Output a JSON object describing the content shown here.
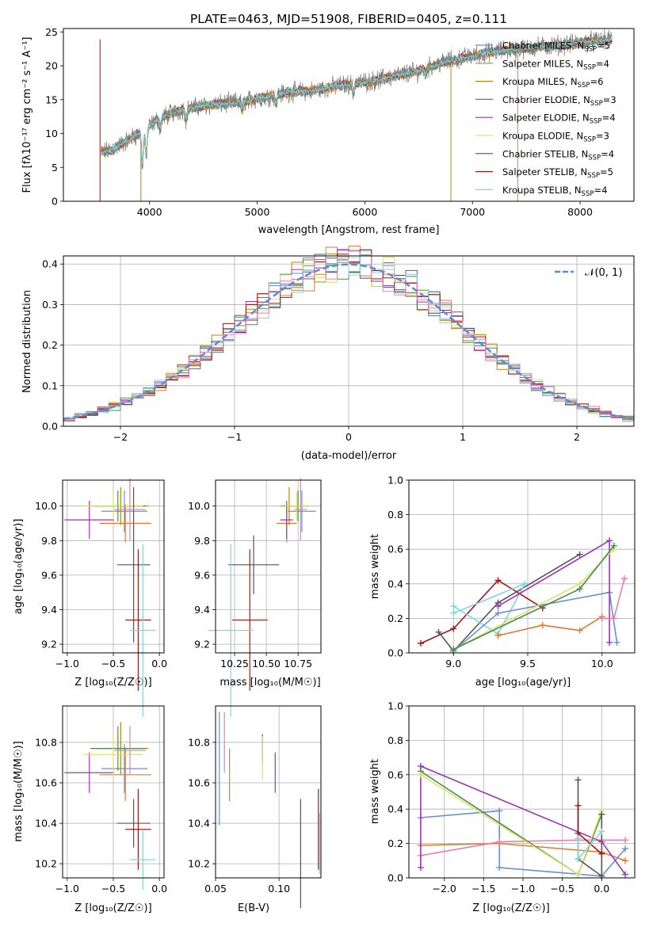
{
  "colors": {
    "Chabrier MILES": "#6a8fd8",
    "Salpeter MILES": "#e07a2e",
    "Kroupa MILES": "#b8860b",
    "Chabrier ELODIE": "#4d8a4d",
    "Salpeter ELODIE": "#9d35b5",
    "Kroupa ELODIE": "#d9e36a",
    "Chabrier STELIB": "#555555",
    "Salpeter STELIB": "#a01818",
    "Kroupa STELIB": "#7fd6dc",
    "Pink": "#e87fb0",
    "Gauss": "#5b8ad6"
  },
  "chart_data": [
    {
      "type": "line",
      "title": "PLATE=0463, MJD=51908, FIBERID=0405, z=0.111",
      "xlabel": "wavelength [Angstrom, rest frame]",
      "ylabel": "Flux [fλ10⁻¹⁷ erg cm⁻² s⁻¹ A⁻¹]",
      "xlim": [
        3200,
        8500
      ],
      "ylim": [
        0,
        25.5
      ],
      "xticks": [
        4000,
        5000,
        6000,
        7000,
        8000
      ],
      "yticks": [
        0,
        5,
        10,
        15,
        20,
        25
      ],
      "legend_position": "right",
      "legend": [
        {
          "label": "Chabrier MILES, N_SSP=5",
          "main": "Chabrier MILES, N",
          "sub": "SSP",
          "tail": "=5",
          "color": "Chabrier MILES"
        },
        {
          "label": "Salpeter MILES, N_SSP=4",
          "main": "Salpeter MILES, N",
          "sub": "SSP",
          "tail": "=4",
          "color": "Salpeter MILES"
        },
        {
          "label": "Kroupa MILES, N_SSP=6",
          "main": "Kroupa MILES, N",
          "sub": "SSP",
          "tail": "=6",
          "color": "Kroupa MILES"
        },
        {
          "label": "Chabrier ELODIE, N_SSP=3",
          "main": "Chabrier ELODIE, N",
          "sub": "SSP",
          "tail": "=3",
          "color": "Chabrier ELODIE"
        },
        {
          "label": "Salpeter ELODIE, N_SSP=4",
          "main": "Salpeter ELODIE, N",
          "sub": "SSP",
          "tail": "=4",
          "color": "Salpeter ELODIE"
        },
        {
          "label": "Kroupa ELODIE, N_SSP=3",
          "main": "Kroupa ELODIE, N",
          "sub": "SSP",
          "tail": "=3",
          "color": "Kroupa ELODIE"
        },
        {
          "label": "Chabrier STELIB, N_SSP=4",
          "main": "Chabrier STELIB, N",
          "sub": "SSP",
          "tail": "=4",
          "color": "Chabrier STELIB"
        },
        {
          "label": "Salpeter STELIB, N_SSP=5",
          "main": "Salpeter STELIB, N",
          "sub": "SSP",
          "tail": "=5",
          "color": "Salpeter STELIB"
        },
        {
          "label": "Kroupa STELIB, N_SSP=4",
          "main": "Kroupa STELIB, N",
          "sub": "SSP",
          "tail": "=4",
          "color": "Kroupa STELIB"
        }
      ],
      "continuum_knots": [
        [
          3550,
          7.2
        ],
        [
          3650,
          7.6
        ],
        [
          3800,
          9.0
        ],
        [
          3950,
          10.5
        ],
        [
          4100,
          12.3
        ],
        [
          4300,
          13.5
        ],
        [
          4500,
          14.1
        ],
        [
          4700,
          14.4
        ],
        [
          4900,
          14.8
        ],
        [
          5100,
          15.5
        ],
        [
          5300,
          16.1
        ],
        [
          5500,
          16.3
        ],
        [
          5700,
          16.9
        ],
        [
          5900,
          17.4
        ],
        [
          6100,
          17.8
        ],
        [
          6300,
          18.6
        ],
        [
          6500,
          19.2
        ],
        [
          6700,
          20.4
        ],
        [
          6900,
          21.1
        ],
        [
          7100,
          21.8
        ],
        [
          7300,
          22.3
        ],
        [
          7500,
          22.6
        ],
        [
          7700,
          22.9
        ],
        [
          7900,
          23.2
        ],
        [
          8100,
          23.6
        ],
        [
          8300,
          23.9
        ]
      ],
      "absorption_dips": [
        [
          3934,
          5.0
        ],
        [
          3969,
          4.0
        ],
        [
          4101,
          1.6
        ],
        [
          4340,
          1.5
        ],
        [
          4861,
          1.2
        ],
        [
          5175,
          1.4
        ],
        [
          5893,
          1.5
        ],
        [
          6563,
          0.8
        ]
      ],
      "data_range": [
        3550,
        8300
      ],
      "spikes_to_zero": [
        [
          3540,
          "Salpeter STELIB"
        ],
        [
          3920,
          "Kroupa MILES"
        ],
        [
          6800,
          "Kroupa MILES"
        ],
        [
          7420,
          "Salpeter MILES"
        ]
      ]
    },
    {
      "type": "bar",
      "xlabel": "(data-model)/error",
      "ylabel": "Normed distribution",
      "xlim": [
        -2.5,
        2.5
      ],
      "ylim": [
        0,
        0.42
      ],
      "xticks": [
        -2,
        -1,
        0,
        1,
        2
      ],
      "yticks": [
        0.0,
        0.1,
        0.2,
        0.3,
        0.4
      ],
      "bins": [
        -2.5,
        2.5,
        50
      ],
      "legend_label": "𝒩(0, 1)",
      "series_colors": [
        "Chabrier MILES",
        "Salpeter MILES",
        "Kroupa MILES",
        "Chabrier ELODIE",
        "Salpeter ELODIE",
        "Kroupa ELODIE",
        "Chabrier STELIB",
        "Salpeter STELIB",
        "Kroupa STELIB",
        "Pink"
      ]
    },
    {
      "type": "scatter",
      "xlabel": "Z [log₁₀(Z/Z☉)]",
      "ylabel": "age  [log₁₀(age/yr)]",
      "xlim": [
        -1.05,
        0.05
      ],
      "ylim": [
        9.15,
        10.15
      ],
      "xticks": [
        -1.0,
        -0.5,
        0.0
      ],
      "yticks": [
        9.2,
        9.4,
        9.6,
        9.8,
        10.0
      ],
      "points": [
        {
          "color": "Chabrier MILES",
          "x": -0.38,
          "xerr": 0.25,
          "y": 9.97,
          "yerr": 0.12
        },
        {
          "color": "Salpeter MILES",
          "x": -0.37,
          "xerr": 0.28,
          "y": 9.9,
          "yerr": 0.11
        },
        {
          "color": "Kroupa MILES",
          "x": -0.42,
          "xerr": 0.3,
          "y": 10.0,
          "yerr": 0.11
        },
        {
          "color": "Chabrier ELODIE",
          "x": -0.45,
          "xerr": 0.3,
          "y": 10.0,
          "yerr": 0.09
        },
        {
          "color": "Salpeter ELODIE",
          "x": -0.76,
          "xerr": 0.27,
          "y": 9.92,
          "yerr": 0.11
        },
        {
          "color": "Kroupa ELODIE",
          "x": -0.5,
          "xerr": 0.32,
          "y": 10.0,
          "yerr": 0.08
        },
        {
          "color": "Chabrier STELIB",
          "x": -0.28,
          "xerr": 0.18,
          "y": 9.66,
          "yerr": 0.45
        },
        {
          "color": "Salpeter STELIB",
          "x": -0.23,
          "xerr": 0.14,
          "y": 9.34,
          "yerr": 0.41
        },
        {
          "color": "Kroupa STELIB",
          "x": -0.18,
          "xerr": 0.14,
          "y": 9.28,
          "yerr": 0.5
        },
        {
          "color": "Pink",
          "x": -0.32,
          "xerr": 0.17,
          "y": 9.98,
          "yerr": 0.18
        }
      ]
    },
    {
      "type": "scatter",
      "xlabel": "mass [log₁₀(M/M☉)]",
      "ylabel": "",
      "xlim": [
        10.1,
        10.93
      ],
      "ylim": [
        9.15,
        10.15
      ],
      "xticks": [
        10.25,
        10.5,
        10.75
      ],
      "yticks": [
        9.2,
        9.4,
        9.6,
        9.8,
        10.0
      ],
      "points": [
        {
          "color": "Chabrier MILES",
          "x": 10.78,
          "xerr": 0.11,
          "y": 9.97,
          "yerr": 0.12
        },
        {
          "color": "Salpeter MILES",
          "x": 10.66,
          "xerr": 0.08,
          "y": 9.9,
          "yerr": 0.11
        },
        {
          "color": "Kroupa MILES",
          "x": 10.68,
          "xerr": 0.07,
          "y": 10.0,
          "yerr": 0.11
        },
        {
          "color": "Chabrier ELODIE",
          "x": 10.75,
          "xerr": 0.08,
          "y": 10.0,
          "yerr": 0.09
        },
        {
          "color": "Salpeter ELODIE",
          "x": 10.66,
          "xerr": 0.05,
          "y": 9.92,
          "yerr": 0.11
        },
        {
          "color": "Kroupa ELODIE",
          "x": 10.74,
          "xerr": 0.09,
          "y": 10.0,
          "yerr": 0.08
        },
        {
          "color": "Chabrier STELIB",
          "x": 10.4,
          "xerr": 0.2,
          "y": 9.66,
          "yerr": 0.17
        },
        {
          "color": "Salpeter STELIB",
          "x": 10.37,
          "xerr": 0.14,
          "y": 9.34,
          "yerr": 0.41
        },
        {
          "color": "Kroupa STELIB",
          "x": 10.22,
          "xerr": 0.18,
          "y": 9.28,
          "yerr": 0.5
        },
        {
          "color": "Pink",
          "x": 10.77,
          "xerr": 0.05,
          "y": 9.98,
          "yerr": 0.18
        }
      ]
    },
    {
      "type": "line",
      "xlabel": "age  [log₁₀(age/yr)]",
      "ylabel": "mass weight",
      "xlim": [
        8.7,
        10.22
      ],
      "ylim": [
        0,
        1.0
      ],
      "xticks": [
        9.0,
        9.5,
        10.0
      ],
      "yticks": [
        0.0,
        0.2,
        0.4,
        0.6,
        0.8,
        1.0
      ],
      "series": [
        {
          "color": "Salpeter STELIB",
          "points": [
            [
              8.78,
              0.055
            ],
            [
              9.0,
              0.14
            ],
            [
              9.3,
              0.42
            ],
            [
              9.6,
              0.26
            ]
          ]
        },
        {
          "color": "Chabrier STELIB",
          "points": [
            [
              8.9,
              0.12
            ],
            [
              9.0,
              0.01
            ],
            [
              9.3,
              0.29
            ],
            [
              9.85,
              0.57
            ]
          ]
        },
        {
          "color": "Kroupa STELIB",
          "points": [
            [
              9.0,
              0.27
            ],
            [
              9.3,
              0.11
            ],
            [
              9.48,
              0.4
            ],
            [
              9.0,
              0.23
            ]
          ]
        },
        {
          "color": "Salpeter MILES",
          "points": [
            [
              9.3,
              0.1
            ],
            [
              9.6,
              0.16
            ],
            [
              9.85,
              0.13
            ],
            [
              10.0,
              0.21
            ]
          ]
        },
        {
          "color": "Chabrier MILES",
          "points": [
            [
              9.0,
              0.01
            ],
            [
              9.3,
              0.23
            ],
            [
              10.05,
              0.35
            ],
            [
              10.1,
              0.06
            ]
          ]
        },
        {
          "color": "Salpeter ELODIE",
          "points": [
            [
              9.3,
              0.27
            ],
            [
              10.05,
              0.65
            ],
            [
              10.05,
              0.06
            ]
          ]
        },
        {
          "color": "Kroupa ELODIE",
          "points": [
            [
              9.0,
              0.02
            ],
            [
              9.85,
              0.4
            ],
            [
              10.08,
              0.6
            ]
          ]
        },
        {
          "color": "Chabrier ELODIE",
          "points": [
            [
              9.0,
              0.02
            ],
            [
              9.85,
              0.37
            ],
            [
              10.08,
              0.62
            ]
          ]
        },
        {
          "color": "Pink",
          "points": [
            [
              10.0,
              0.2
            ],
            [
              10.08,
              0.2
            ],
            [
              10.15,
              0.43
            ]
          ]
        }
      ]
    },
    {
      "type": "scatter",
      "xlabel": "Z [log₁₀(Z/Z☉)]",
      "ylabel": "mass [log₁₀(M/M☉)]",
      "xlim": [
        -1.05,
        0.05
      ],
      "ylim": [
        10.13,
        10.98
      ],
      "xticks": [
        -1.0,
        -0.5,
        0.0
      ],
      "yticks": [
        10.2,
        10.4,
        10.6,
        10.8
      ],
      "points": [
        {
          "color": "Chabrier MILES",
          "x": -0.38,
          "xerr": 0.25,
          "y": 10.67,
          "yerr": 0.12
        },
        {
          "color": "Salpeter MILES",
          "x": -0.37,
          "xerr": 0.28,
          "y": 10.64,
          "yerr": 0.13
        },
        {
          "color": "Kroupa MILES",
          "x": -0.42,
          "xerr": 0.3,
          "y": 10.77,
          "yerr": 0.13
        },
        {
          "color": "Chabrier ELODIE",
          "x": -0.45,
          "xerr": 0.3,
          "y": 10.77,
          "yerr": 0.11
        },
        {
          "color": "Salpeter ELODIE",
          "x": -0.76,
          "xerr": 0.27,
          "y": 10.65,
          "yerr": 0.1
        },
        {
          "color": "Kroupa ELODIE",
          "x": -0.5,
          "xerr": 0.32,
          "y": 10.74,
          "yerr": 0.11
        },
        {
          "color": "Chabrier STELIB",
          "x": -0.28,
          "xerr": 0.18,
          "y": 10.4,
          "yerr": 0.12
        },
        {
          "color": "Salpeter STELIB",
          "x": -0.23,
          "xerr": 0.14,
          "y": 10.37,
          "yerr": 0.2
        },
        {
          "color": "Kroupa STELIB",
          "x": -0.18,
          "xerr": 0.14,
          "y": 10.22,
          "yerr": 0.15
        },
        {
          "color": "Pink",
          "x": -0.32,
          "xerr": 0.17,
          "y": 10.76,
          "yerr": 0.12
        }
      ]
    },
    {
      "type": "scatter",
      "xlabel": "E(B-V)",
      "ylabel": "",
      "xlim": [
        0.05,
        0.133
      ],
      "ylim": [
        10.13,
        10.98
      ],
      "xticks": [
        0.05,
        0.1
      ],
      "yticks": [
        10.2,
        10.4,
        10.6,
        10.8
      ],
      "points": [
        {
          "color": "Chabrier MILES",
          "x": 0.053,
          "y": 10.67,
          "yerr": 0.28
        },
        {
          "color": "Salpeter MILES",
          "x": 0.061,
          "y": 10.64,
          "yerr": 0.13
        },
        {
          "color": "Kroupa MILES",
          "x": 0.087,
          "y": 10.77,
          "yerr": 0.07
        },
        {
          "color": "Chabrier ELODIE",
          "x": 0.087,
          "y": 10.77,
          "yerr": 0.07
        },
        {
          "color": "Salpeter ELODIE",
          "x": 0.097,
          "y": 10.65,
          "yerr": 0.1
        },
        {
          "color": "Kroupa ELODIE",
          "x": 0.087,
          "y": 10.72,
          "yerr": 0.11
        },
        {
          "color": "Chabrier STELIB",
          "x": 0.117,
          "y": 10.25,
          "yerr": 0.27
        },
        {
          "color": "Salpeter STELIB",
          "x": 0.131,
          "y": 10.37,
          "yerr": 0.2
        },
        {
          "color": "Kroupa STELIB",
          "x": 0.132,
          "y": 10.3,
          "yerr": 0.15
        },
        {
          "color": "Pink",
          "x": 0.057,
          "y": 10.8,
          "yerr": 0.15
        }
      ]
    },
    {
      "type": "line",
      "xlabel": "Z [log₁₀(Z/Z☉)]",
      "ylabel": "mass weight",
      "xlim": [
        -2.45,
        0.42
      ],
      "ylim": [
        0,
        1.0
      ],
      "xticks": [
        -2.0,
        -1.5,
        -1.0,
        -0.5,
        0.0
      ],
      "yticks": [
        0.0,
        0.2,
        0.4,
        0.6,
        0.8,
        1.0
      ],
      "series": [
        {
          "color": "Chabrier MILES",
          "points": [
            [
              -2.3,
              0.35
            ],
            [
              -1.3,
              0.39
            ],
            [
              -1.3,
              0.06
            ],
            [
              0.0,
              0.01
            ],
            [
              0.3,
              0.17
            ]
          ]
        },
        {
          "color": "Salpeter MILES",
          "points": [
            [
              -2.3,
              0.19
            ],
            [
              -1.3,
              0.2
            ],
            [
              0.0,
              0.15
            ],
            [
              0.3,
              0.1
            ]
          ]
        },
        {
          "color": "Pink",
          "points": [
            [
              -2.3,
              0.13
            ],
            [
              -1.3,
              0.21
            ],
            [
              -0.3,
              0.22
            ],
            [
              0.3,
              0.22
            ]
          ]
        },
        {
          "color": "Salpeter ELODIE",
          "points": [
            [
              -2.3,
              0.06
            ],
            [
              -2.3,
              0.65
            ],
            [
              0.0,
              0.21
            ],
            [
              0.3,
              0.02
            ]
          ]
        },
        {
          "color": "Chabrier ELODIE",
          "points": [
            [
              -2.3,
              0.62
            ],
            [
              -0.3,
              0.02
            ],
            [
              0.0,
              0.37
            ]
          ]
        },
        {
          "color": "Kroupa ELODIE",
          "points": [
            [
              -2.3,
              0.6
            ],
            [
              -0.3,
              0.02
            ],
            [
              0.0,
              0.39
            ]
          ]
        },
        {
          "color": "Chabrier STELIB",
          "points": [
            [
              -0.3,
              0.57
            ],
            [
              -0.3,
              0.11
            ],
            [
              0.0,
              0.01
            ],
            [
              0.0,
              0.37
            ]
          ]
        },
        {
          "color": "Salpeter STELIB",
          "points": [
            [
              -0.3,
              0.42
            ],
            [
              -0.3,
              0.26
            ],
            [
              0.0,
              0.14
            ]
          ]
        },
        {
          "color": "Kroupa STELIB",
          "points": [
            [
              -0.3,
              0.23
            ],
            [
              -0.3,
              0.11
            ],
            [
              0.0,
              0.27
            ]
          ]
        }
      ]
    }
  ]
}
